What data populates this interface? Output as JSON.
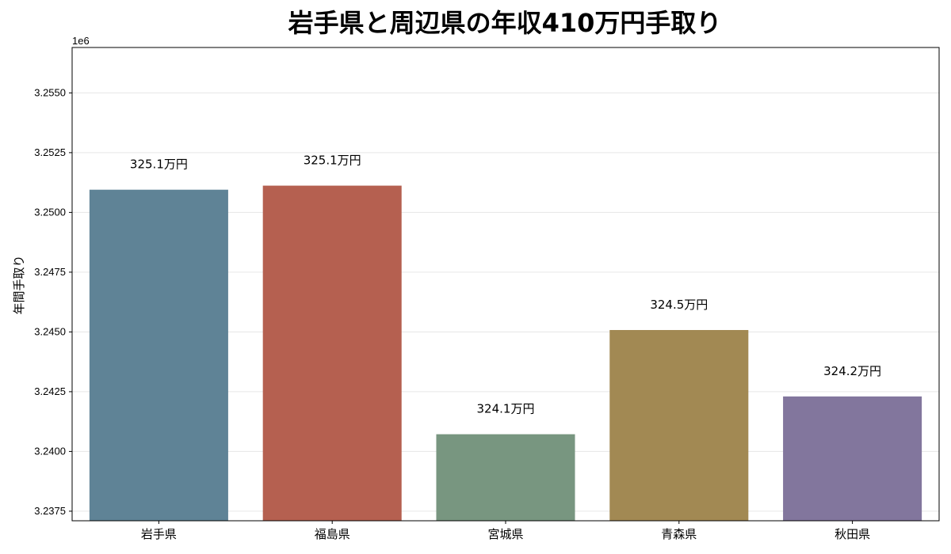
{
  "chart_data": {
    "type": "bar",
    "title": "岩手県と周辺県の年収410万円手取り",
    "ylabel": "年間手取り",
    "xlabel": "",
    "offset_text": "1e6",
    "categories": [
      "岩手県",
      "福島県",
      "宮城県",
      "青森県",
      "秋田県"
    ],
    "values": [
      3250950,
      3251120,
      3240720,
      3245080,
      3242300
    ],
    "data_labels": [
      "325.1万円",
      "325.1万円",
      "324.1万円",
      "324.5万円",
      "324.2万円"
    ],
    "colors": [
      "#5f8396",
      "#b56050",
      "#789680",
      "#a28953",
      "#82769d"
    ],
    "ylim": [
      3237100,
      3256900
    ],
    "yticks": [
      3237500,
      3240000,
      3242500,
      3245000,
      3247500,
      3250000,
      3252500,
      3255000
    ],
    "ytick_labels": [
      "3.2375",
      "3.2400",
      "3.2425",
      "3.2450",
      "3.2475",
      "3.2500",
      "3.2525",
      "3.2550"
    ],
    "grid": true,
    "legend": "none"
  }
}
